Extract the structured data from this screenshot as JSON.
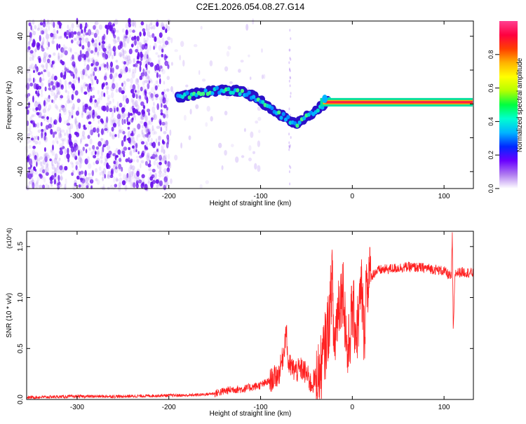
{
  "title": "C2E1.2026.054.08.27.G14",
  "colors": {
    "snr_line": "#ff2020",
    "axis": "#000000",
    "scatter": "#7b2cf0",
    "ridge": "#00c8d8"
  },
  "chart_data": [
    {
      "type": "heatmap",
      "name": "spectrogram",
      "xlabel": "Height of straight line (km)",
      "ylabel": "Frequency (Hz)",
      "xlim": [
        -355,
        132
      ],
      "ylim": [
        -50,
        49
      ],
      "xticks": [
        -300,
        -200,
        -100,
        0,
        100
      ],
      "xtick_labels": [
        "-300",
        "-200",
        "-100",
        "0",
        "100"
      ],
      "yticks": [
        -40,
        -20,
        0,
        20,
        40
      ],
      "ytick_labels": [
        "-40",
        "-20",
        "0",
        "20",
        "40"
      ],
      "ridge": {
        "x": [
          -190,
          -180,
          -170,
          -160,
          -150,
          -140,
          -130,
          -120,
          -110,
          -100,
          -90,
          -80,
          -70,
          -62,
          -55,
          -50,
          -45,
          -40,
          -35,
          -30,
          -25,
          -20,
          0,
          50,
          100,
          132
        ],
        "y": [
          4,
          5,
          6,
          7,
          8,
          8,
          8,
          7,
          5,
          2,
          -3,
          -6,
          -9,
          -12,
          -10,
          -7,
          -6,
          -4,
          -2,
          0,
          2,
          1,
          1,
          1,
          1,
          1
        ]
      },
      "colorbar": {
        "label": "Normalized spectral amplitude",
        "range": [
          0,
          1
        ],
        "ticks": [
          0.0,
          0.2,
          0.4,
          0.6,
          0.8
        ],
        "tick_labels": [
          "0.0",
          "0.2",
          "0.4",
          "0.6",
          "0.8"
        ],
        "stops": [
          "#ffffff",
          "#b07cf0",
          "#6a00ff",
          "#0028ff",
          "#00b4ff",
          "#00ffd0",
          "#00ff40",
          "#b4ff00",
          "#ffff00",
          "#ffb400",
          "#ff4000",
          "#ff0040",
          "#ff4090"
        ]
      }
    },
    {
      "type": "line",
      "name": "snr",
      "xlabel": "Height of straight line (km)",
      "ylabel": "SNR (10 * v/v)",
      "y_multiplier": "(x10^4)",
      "xlim": [
        -355,
        132
      ],
      "ylim": [
        0,
        1.65
      ],
      "xticks": [
        -300,
        -200,
        -100,
        0,
        100
      ],
      "xtick_labels": [
        "-300",
        "-200",
        "-100",
        "0",
        "100"
      ],
      "yticks": [
        0,
        0.5,
        1.0,
        1.5
      ],
      "ytick_labels": [
        "0.0",
        "0.5",
        "1.0",
        "1.5"
      ],
      "series": [
        {
          "x": [
            -355,
            -300,
            -250,
            -200,
            -180,
            -160,
            -150,
            -140,
            -130,
            -120,
            -110,
            -100,
            -90,
            -80,
            -75,
            -72,
            -70,
            -65,
            -60,
            -55,
            -50,
            -45,
            -40,
            -35,
            -30,
            -25,
            -22,
            -20,
            -15,
            -10,
            -5,
            0,
            5,
            10,
            13,
            15,
            20,
            25,
            30,
            40,
            60,
            80,
            100,
            108,
            109,
            110,
            112,
            120,
            132
          ],
          "y": [
            0.02,
            0.03,
            0.03,
            0.04,
            0.04,
            0.05,
            0.06,
            0.08,
            0.1,
            0.1,
            0.12,
            0.14,
            0.18,
            0.25,
            0.45,
            0.7,
            0.35,
            0.3,
            0.28,
            0.3,
            0.25,
            0.15,
            0.2,
            0.25,
            0.5,
            0.8,
            1.22,
            0.5,
            0.95,
            1.1,
            0.4,
            0.9,
            0.65,
            1.1,
            0.6,
            1.15,
            1.2,
            1.25,
            1.27,
            1.28,
            1.3,
            1.29,
            1.26,
            1.2,
            1.65,
            0.66,
            1.24,
            1.25,
            1.24
          ]
        }
      ]
    }
  ]
}
